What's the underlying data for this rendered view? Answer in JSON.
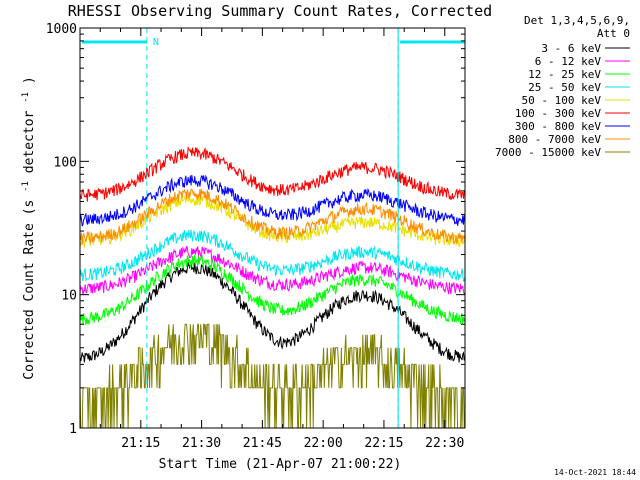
{
  "chart_data": {
    "type": "line",
    "title": "RHESSI Observing Summary Count Rates, Corrected",
    "xlabel": "Start Time (21-Apr-07 21:00:22)",
    "ylabel": "Corrected Count Rate (s⁻¹ detector⁻¹)",
    "ylabel_main": "Corrected Count Rate (s",
    "ylabel_sup1": "-1",
    "ylabel_mid": " detector",
    "ylabel_sup2": "-1",
    "ylabel_end": ")",
    "y_scale": "log",
    "ylim": [
      1,
      1000
    ],
    "xlim_minutes": [
      0,
      95
    ],
    "x_tick_minutes": [
      15,
      30,
      45,
      60,
      75,
      90
    ],
    "x_tick_labels": [
      "21:15",
      "21:30",
      "21:45",
      "22:00",
      "22:15",
      "22:30"
    ],
    "y_tick_values": [
      1,
      10,
      100,
      1000
    ],
    "y_tick_labels": [
      "1",
      "10",
      "100",
      "1000"
    ],
    "detectors_line1": "Det 1,3,4,5,6,9,",
    "detectors_line2": "Att 0",
    "timestamp": "14-Oct-2021 18:44",
    "night_intervals_minutes": [
      [
        0,
        16.5
      ],
      [
        78.5,
        95
      ]
    ],
    "night_bar_label": "N",
    "night_color": "#00e5ee",
    "series": [
      {
        "name": "3 - 6 keV",
        "color": "#000000",
        "baseline": 3.2,
        "peaks": [
          16,
          10
        ]
      },
      {
        "name": "6 - 12 keV",
        "color": "#ff00ff",
        "baseline": 11,
        "peaks": [
          21,
          16
        ]
      },
      {
        "name": "12 - 25 keV",
        "color": "#00ff00",
        "baseline": 6.5,
        "peaks": [
          18,
          13
        ]
      },
      {
        "name": "25 - 50 keV",
        "color": "#00e5ee",
        "baseline": 14,
        "peaks": [
          28,
          21
        ]
      },
      {
        "name": "50 - 100 keV",
        "color": "#e8e000",
        "baseline": 25,
        "peaks": [
          52,
          35
        ]
      },
      {
        "name": "100 - 300 keV",
        "color": "#ff0000",
        "baseline": 55,
        "peaks": [
          115,
          90
        ]
      },
      {
        "name": "300 - 800 keV",
        "color": "#0000ff",
        "baseline": 36,
        "peaks": [
          72,
          56
        ]
      },
      {
        "name": "800 - 7000 keV",
        "color": "#ff8c00",
        "baseline": 26,
        "peaks": [
          58,
          44
        ]
      },
      {
        "name": "7000 - 15000 keV",
        "color": "#808000",
        "baseline": 1.6,
        "peaks": [
          5,
          3.5
        ]
      }
    ],
    "orbit_peak_minutes": [
      28,
      70
    ],
    "orbit_peak_width_minutes": 9
  }
}
